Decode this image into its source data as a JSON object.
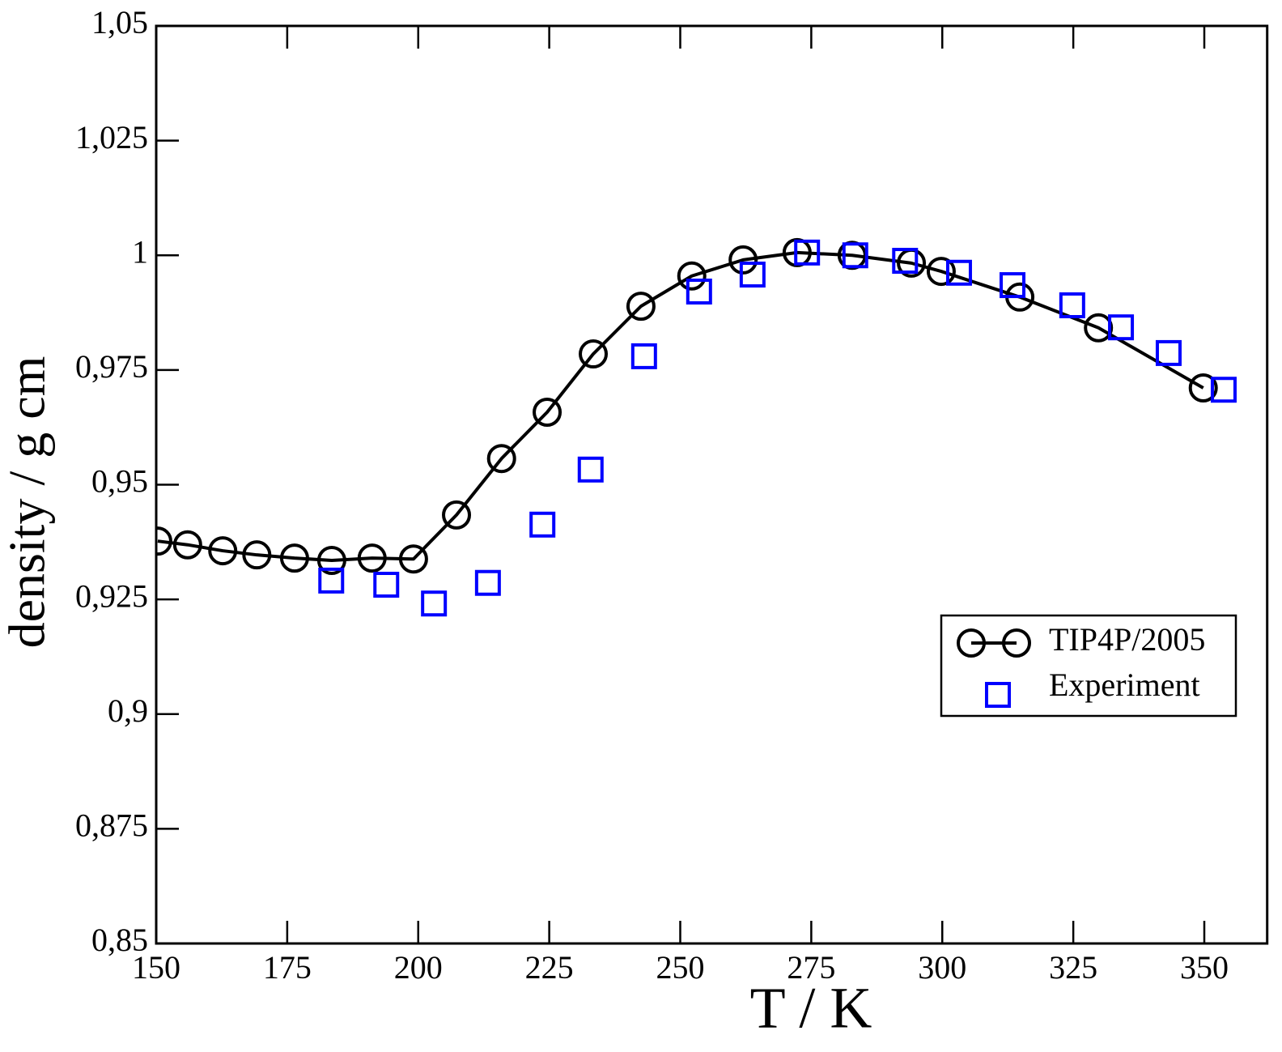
{
  "chart_data": {
    "type": "line",
    "x_label": "T / K",
    "y_label": "density / g cm",
    "xlim": [
      150,
      362
    ],
    "ylim": [
      0.85,
      1.05
    ],
    "xticks": [
      150,
      175,
      200,
      225,
      250,
      275,
      300,
      325,
      350
    ],
    "yticks": [
      {
        "value": 0.85,
        "label": "0,85"
      },
      {
        "value": 0.875,
        "label": "0,875"
      },
      {
        "value": 0.9,
        "label": "0,9"
      },
      {
        "value": 0.925,
        "label": "0,925"
      },
      {
        "value": 0.95,
        "label": "0,95"
      },
      {
        "value": 0.975,
        "label": "0,975"
      },
      1,
      {
        "value": 1.025,
        "label": "1,025"
      },
      {
        "value": 1.05,
        "label": "1,05"
      }
    ],
    "legend": "right",
    "series": [
      {
        "name": "TIP4P/2005",
        "color": "#000000",
        "marker": "circle",
        "line": true,
        "x": [
          150.3,
          156,
          162.7,
          169.2,
          176.4,
          183.5,
          191.2,
          199.1,
          207.3,
          215.9,
          224.6,
          233.4,
          242.5,
          252.2,
          262,
          272.3,
          282.8,
          294.1,
          299.8,
          314.8,
          329.8,
          349.8
        ],
        "values": [
          0.9377,
          0.9369,
          0.9356,
          0.9347,
          0.934,
          0.9335,
          0.934,
          0.9338,
          0.9434,
          0.9557,
          0.9658,
          0.9785,
          0.9889,
          0.9955,
          0.999,
          1.0006,
          1.0,
          0.9983,
          0.9965,
          0.9909,
          0.9842,
          0.9711
        ]
      },
      {
        "name": "Experiment",
        "color": "#0000ff",
        "marker": "square",
        "line": false,
        "x": [
          183.4,
          193.9,
          203,
          213.3,
          223.7,
          232.9,
          243.1,
          253.6,
          263.8,
          274.2,
          283.4,
          292.9,
          303.2,
          313.4,
          324.8,
          334.1,
          343.2,
          353.7
        ],
        "values": [
          0.9291,
          0.9282,
          0.9241,
          0.9286,
          0.9413,
          0.9533,
          0.978,
          0.9921,
          0.9958,
          1.0006,
          1.0,
          0.9988,
          0.9962,
          0.9935,
          0.9891,
          0.9843,
          0.9787,
          0.9707
        ]
      }
    ]
  }
}
